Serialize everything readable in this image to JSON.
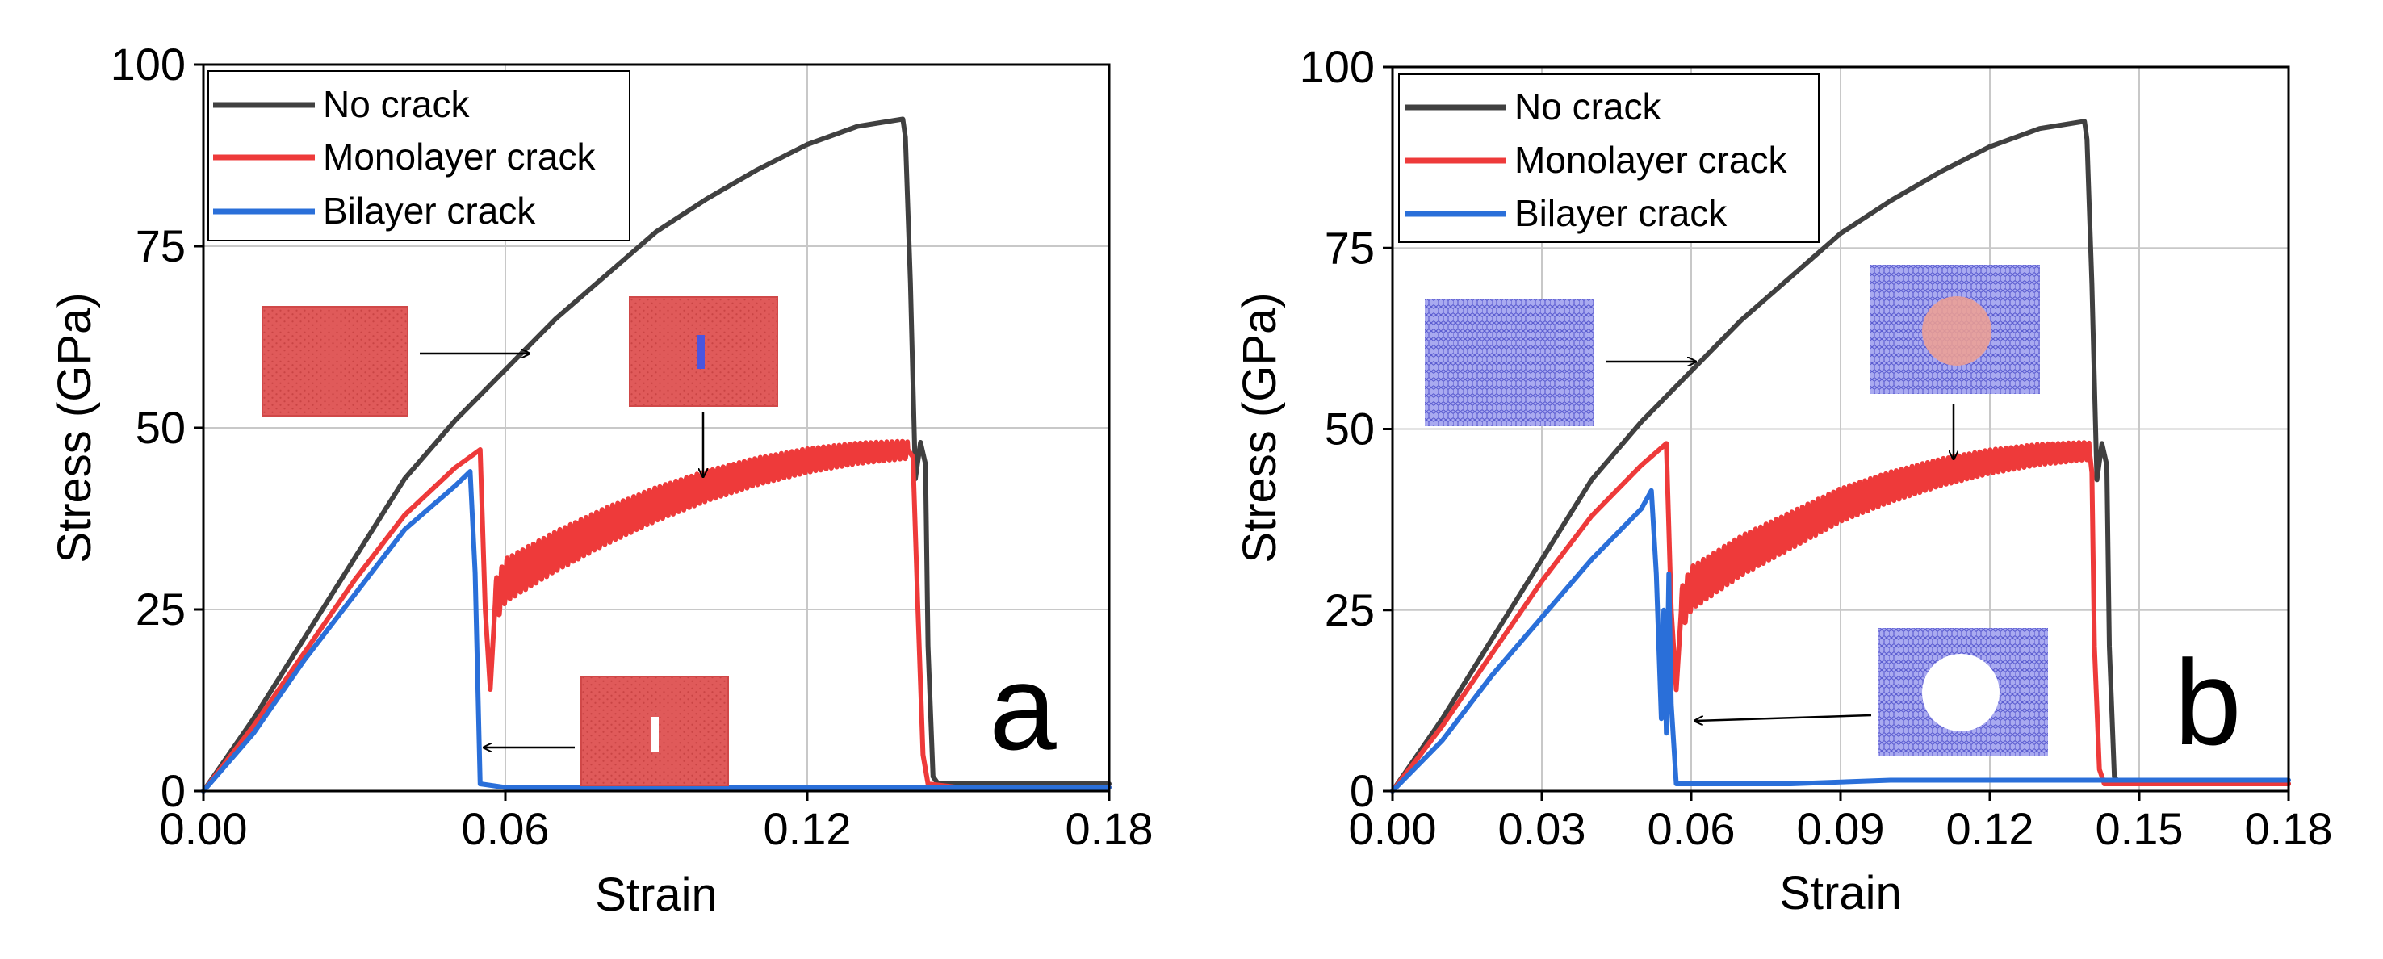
{
  "chart_data": [
    {
      "type": "line",
      "panel_label": "a",
      "xlabel": "Strain",
      "ylabel": "Stress (GPa)",
      "xlim": [
        0,
        0.18
      ],
      "ylim": [
        0,
        100
      ],
      "xticks": [
        0.0,
        0.06,
        0.12,
        0.18
      ],
      "xtick_labels": [
        "0.00",
        "0.06",
        "0.12",
        "0.18"
      ],
      "yticks": [
        0,
        25,
        50,
        75,
        100
      ],
      "ytick_labels": [
        "0",
        "25",
        "50",
        "75",
        "100"
      ],
      "grid": true,
      "legend_position": "top-left",
      "series": [
        {
          "name": "No crack",
          "color": "#404040",
          "x": [
            0,
            0.01,
            0.02,
            0.03,
            0.04,
            0.05,
            0.06,
            0.07,
            0.08,
            0.09,
            0.1,
            0.11,
            0.12,
            0.13,
            0.139,
            0.1395,
            0.1405,
            0.1415,
            0.1425,
            0.1435,
            0.144,
            0.145,
            0.146,
            0.15,
            0.16,
            0.17,
            0.18
          ],
          "y": [
            0,
            10,
            21,
            32,
            43,
            51,
            58,
            65,
            71,
            77,
            81.5,
            85.5,
            89,
            91.5,
            92.5,
            90,
            70,
            43,
            48,
            45,
            20,
            2,
            1,
            1,
            1,
            1,
            1
          ]
        },
        {
          "name": "Monolayer crack",
          "color": "#ee3a3a",
          "x": [
            0,
            0.01,
            0.02,
            0.03,
            0.04,
            0.05,
            0.055,
            0.056,
            0.057,
            0.058,
            0.06,
            0.07,
            0.08,
            0.09,
            0.1,
            0.11,
            0.12,
            0.13,
            0.14,
            0.141,
            0.142,
            0.143,
            0.144,
            0.15,
            0.16,
            0.17,
            0.18
          ],
          "y": [
            0,
            9,
            19,
            29,
            38,
            44.5,
            47,
            25,
            14,
            26,
            29,
            33,
            36.5,
            39.5,
            42,
            44,
            45.5,
            46.5,
            47,
            46,
            25,
            5,
            1,
            0.5,
            0.5,
            0.5,
            0.5
          ],
          "oscillation_amplitude": 3
        },
        {
          "name": "Bilayer crack",
          "color": "#2a6fd9",
          "x": [
            0,
            0.01,
            0.02,
            0.03,
            0.04,
            0.05,
            0.053,
            0.054,
            0.055,
            0.06,
            0.08,
            0.1,
            0.12,
            0.14,
            0.16,
            0.18
          ],
          "y": [
            0,
            8,
            18,
            27,
            36,
            42,
            44,
            30,
            1,
            0.5,
            0.5,
            0.5,
            0.5,
            0.5,
            0.5,
            0.5
          ]
        }
      ],
      "insets": [
        {
          "name": "no-crack",
          "fill": "#e05a5a",
          "feature": "none"
        },
        {
          "name": "monolayer-crack",
          "fill": "#e05a5a",
          "feature": "blue-slit"
        },
        {
          "name": "bilayer-crack",
          "fill": "#e05a5a",
          "feature": "white-slit"
        }
      ]
    },
    {
      "type": "line",
      "panel_label": "b",
      "xlabel": "Strain",
      "ylabel": "Stress (GPa)",
      "xlim": [
        0,
        0.18
      ],
      "ylim": [
        0,
        100
      ],
      "xticks": [
        0.0,
        0.03,
        0.06,
        0.09,
        0.12,
        0.15,
        0.18
      ],
      "xtick_labels": [
        "0.00",
        "0.03",
        "0.06",
        "0.09",
        "0.12",
        "0.15",
        "0.18"
      ],
      "yticks": [
        0,
        25,
        50,
        75,
        100
      ],
      "ytick_labels": [
        "0",
        "25",
        "50",
        "75",
        "100"
      ],
      "grid": true,
      "legend_position": "top-left",
      "series": [
        {
          "name": "No crack",
          "color": "#404040",
          "x": [
            0,
            0.01,
            0.02,
            0.03,
            0.04,
            0.05,
            0.06,
            0.07,
            0.08,
            0.09,
            0.1,
            0.11,
            0.12,
            0.13,
            0.139,
            0.1395,
            0.1405,
            0.1415,
            0.1425,
            0.1435,
            0.144,
            0.145,
            0.146,
            0.15,
            0.16,
            0.17,
            0.18
          ],
          "y": [
            0,
            10,
            21,
            32,
            43,
            51,
            58,
            65,
            71,
            77,
            81.5,
            85.5,
            89,
            91.5,
            92.5,
            90,
            70,
            43,
            48,
            45,
            20,
            2,
            1,
            1,
            1,
            1,
            1
          ]
        },
        {
          "name": "Monolayer crack",
          "color": "#ee3a3a",
          "x": [
            0,
            0.01,
            0.02,
            0.03,
            0.04,
            0.05,
            0.055,
            0.056,
            0.057,
            0.058,
            0.06,
            0.07,
            0.08,
            0.09,
            0.1,
            0.11,
            0.12,
            0.13,
            0.14,
            0.1405,
            0.141,
            0.142,
            0.143,
            0.15,
            0.16,
            0.17,
            0.18
          ],
          "y": [
            0,
            9,
            19,
            29,
            38,
            45,
            48,
            25,
            14,
            25,
            28,
            32.5,
            36,
            39.5,
            42,
            44,
            45.5,
            46.5,
            47,
            44,
            20,
            3,
            1,
            1,
            1,
            1,
            1
          ],
          "oscillation_amplitude": 3
        },
        {
          "name": "Bilayer crack",
          "color": "#2a6fd9",
          "x": [
            0,
            0.01,
            0.02,
            0.03,
            0.04,
            0.05,
            0.052,
            0.053,
            0.054,
            0.0545,
            0.055,
            0.0555,
            0.056,
            0.057,
            0.06,
            0.08,
            0.1,
            0.12,
            0.14,
            0.16,
            0.18
          ],
          "y": [
            0,
            7,
            16,
            24,
            32,
            39,
            41.5,
            30,
            10,
            25,
            8,
            30,
            12,
            1,
            1,
            1,
            1.5,
            1.5,
            1.5,
            1.5,
            1.5
          ]
        }
      ],
      "insets": [
        {
          "name": "no-crack",
          "fill": "#8f90e6",
          "feature": "none"
        },
        {
          "name": "monolayer-hole",
          "fill": "#8f90e6",
          "feature": "red-circle"
        },
        {
          "name": "bilayer-hole",
          "fill": "#8f90e6",
          "feature": "white-circle"
        }
      ]
    }
  ]
}
